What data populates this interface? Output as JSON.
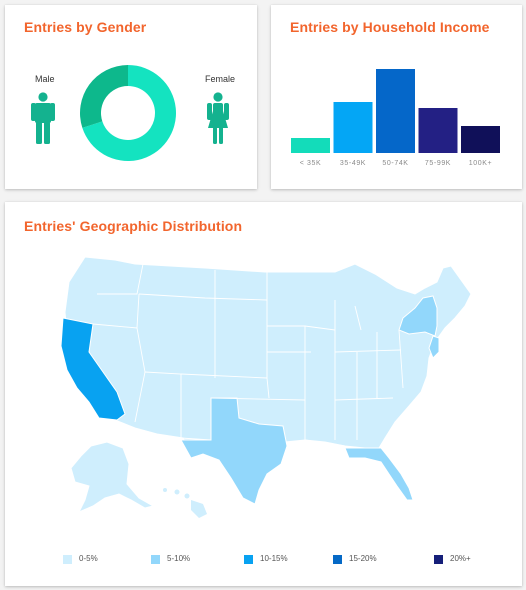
{
  "gender_card": {
    "title": "Entries by Gender",
    "male_label": "Male",
    "female_label": "Female",
    "male_share": 0.3,
    "female_share": 0.7,
    "colors": {
      "male": "#0db88c",
      "female": "#14e3c0",
      "icon": "#14b28f"
    }
  },
  "income_card": {
    "title": "Entries by Household Income"
  },
  "chart_data": {
    "type": "bar",
    "categories": [
      "< 35K",
      "35-49K",
      "50-74K",
      "75-99K",
      "100K+"
    ],
    "values": [
      2.5,
      8.5,
      14.0,
      7.5,
      4.5
    ],
    "colors": [
      "#13dcba",
      "#04a6f5",
      "#0567c9",
      "#232084",
      "#101059"
    ],
    "ylim": [
      0,
      15
    ]
  },
  "geo_card": {
    "title": "Entries' Geographic Distribution",
    "legend": [
      {
        "label": "0-5%",
        "color": "#cfeefd"
      },
      {
        "label": "5-10%",
        "color": "#92d7fb"
      },
      {
        "label": "10-15%",
        "color": "#08a2f1"
      },
      {
        "label": "15-20%",
        "color": "#0569c6"
      },
      {
        "label": "20%+",
        "color": "#151f79"
      }
    ],
    "highlighted_states": {
      "California": "10-15%",
      "Texas": "5-10%",
      "Florida": "5-10%",
      "New York": "5-10%",
      "New Jersey": "5-10%"
    }
  }
}
